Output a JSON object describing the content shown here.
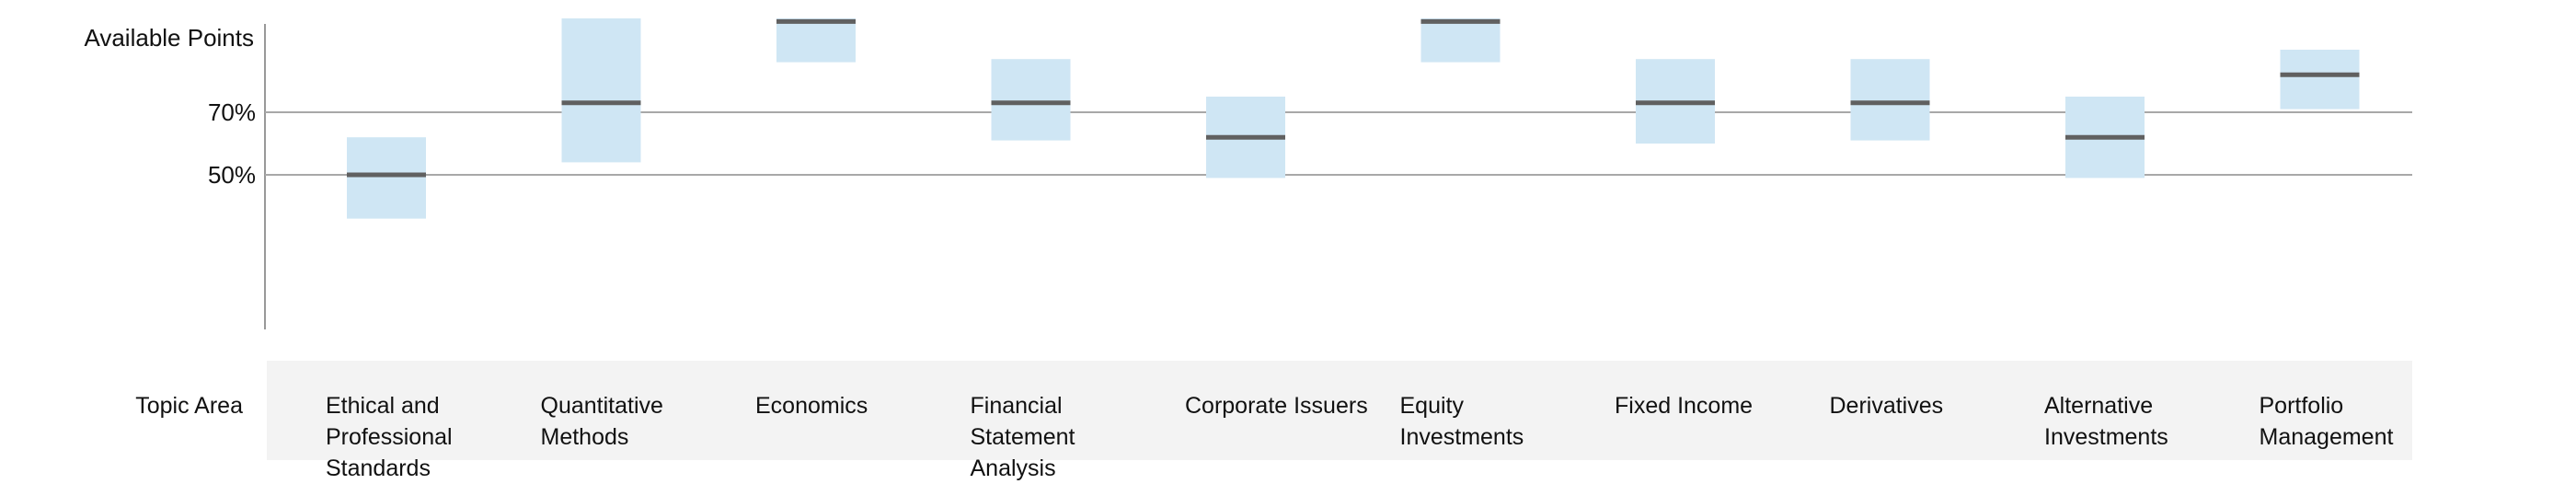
{
  "chart_data": {
    "type": "range",
    "ylabel": "Available Points",
    "reference_lines": [
      {
        "value": 70,
        "label": "70%"
      },
      {
        "value": 50,
        "label": "50%"
      }
    ],
    "xlabel": "Topic Area",
    "ylim": [
      5,
      105
    ],
    "colors": {
      "range": "#cfe6f4",
      "marker": "#606060",
      "reference": "#a8a8a8",
      "axis": "#999999",
      "band": "#f3f3f3"
    },
    "categories": [
      "Ethical and Professional Standards",
      "Quantitative Methods",
      "Economics",
      "Financial Statement Analysis",
      "Corporate Issuers",
      "Equity Investments",
      "Fixed Income",
      "Derivatives",
      "Alternative Investments",
      "Portfolio Management"
    ],
    "ranges": [
      {
        "low": 36,
        "high": 62,
        "mid": 50
      },
      {
        "low": 54,
        "high": 100,
        "mid": 73
      },
      {
        "low": 86,
        "high": 100,
        "mid": 99
      },
      {
        "low": 61,
        "high": 87,
        "mid": 73
      },
      {
        "low": 49,
        "high": 75,
        "mid": 62
      },
      {
        "low": 86,
        "high": 100,
        "mid": 99
      },
      {
        "low": 60,
        "high": 87,
        "mid": 73
      },
      {
        "low": 61,
        "high": 87,
        "mid": 73
      },
      {
        "low": 49,
        "high": 75,
        "mid": 62
      },
      {
        "low": 71,
        "high": 90,
        "mid": 82
      }
    ]
  }
}
